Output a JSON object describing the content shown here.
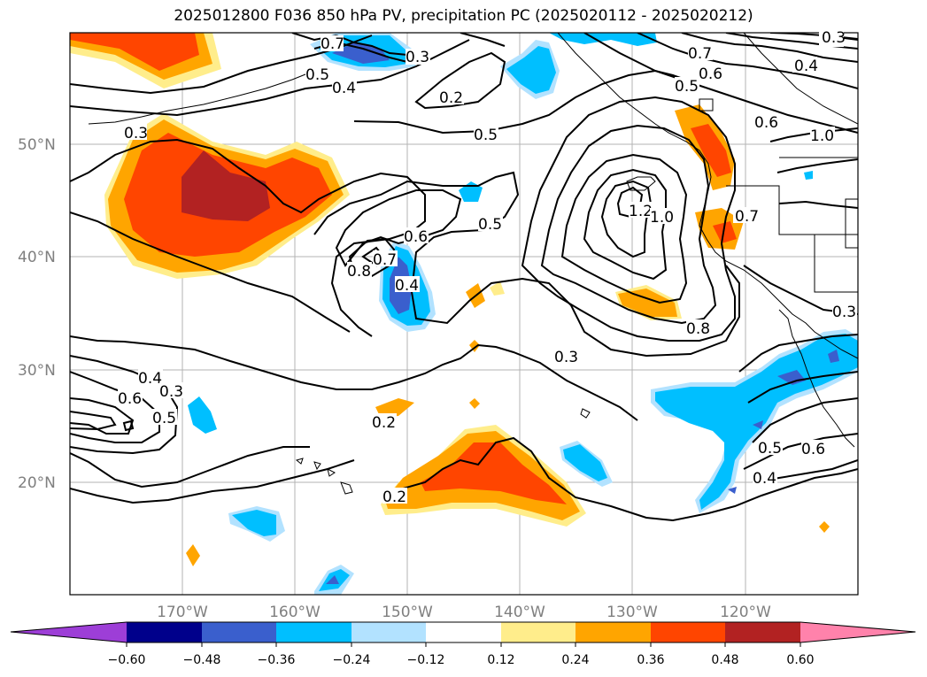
{
  "title": "2025012800 F036 850 hPa PV, precipitation PC (2025020112 - 2025020212)",
  "map": {
    "lat_labels": [
      "50°N",
      "40°N",
      "30°N",
      "20°N"
    ],
    "lon_labels": [
      "170°W",
      "160°W",
      "150°W",
      "140°W",
      "130°W",
      "120°W"
    ],
    "contour_labels": [
      "0.7",
      "0.5",
      "0.4",
      "0.3",
      "0.2",
      "0.5",
      "0.7",
      "0.6",
      "0.5",
      "0.4",
      "0.6",
      "1.0",
      "0.3",
      "0.5",
      "1.2",
      "1.0",
      "0.7",
      "0.8",
      "0.7",
      "0.4",
      "0.6",
      "0.8",
      "0.3",
      "0.3",
      "0.6",
      "0.4",
      "0.3",
      "0.5",
      "0.2",
      "0.2",
      "0.5",
      "0.6",
      "0.4",
      "0.3"
    ]
  },
  "colorbar": {
    "colors": [
      "#9d3ed7",
      "#00008b",
      "#3a5fcd",
      "#00bfff",
      "#b2e2ff",
      "#ffffff",
      "#ffed8b",
      "#ffa500",
      "#ff4500",
      "#b22222",
      "#ff82ab"
    ],
    "tick_labels": [
      "−0.60",
      "−0.48",
      "−0.36",
      "−0.24",
      "−0.12",
      "0.12",
      "0.24",
      "0.36",
      "0.48",
      "0.60"
    ]
  }
}
